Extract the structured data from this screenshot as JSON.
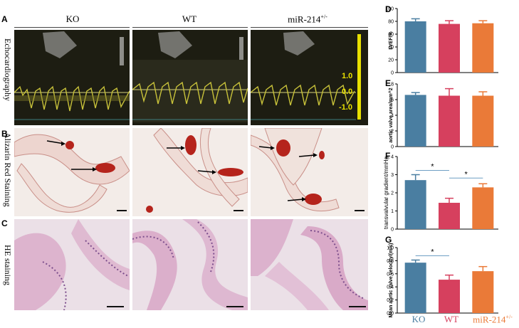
{
  "panel_letters": {
    "A": "A",
    "B": "B",
    "C": "C",
    "D": "D",
    "E": "E",
    "F": "F",
    "G": "G"
  },
  "columns": [
    "KO",
    "WT",
    "miR-214"
  ],
  "column_superscript": "+/-",
  "rows": {
    "echo": "Echocardiography",
    "red": "Alizarin Red Staining",
    "he": "HE staining"
  },
  "echo_scale_labels": [
    "1.0",
    "0.0",
    "-1.0"
  ],
  "colors": {
    "KO": "#4a7ea1",
    "WT": "#d6405e",
    "miR": "#ea7a38",
    "echo_wave": "#c8c23a",
    "stain": "#b5241c"
  },
  "x_labels": [
    "KO",
    "WT",
    "miR-214"
  ],
  "x_superscript": "+/-",
  "chart_data": [
    {
      "panel": "D",
      "type": "bar",
      "categories": [
        "KO",
        "WT",
        "miR-214+/-"
      ],
      "values": [
        80,
        76,
        77
      ],
      "errors": [
        4,
        5,
        4
      ],
      "ylabel": "LVEF/%",
      "ylim": [
        0,
        100
      ],
      "yticks": [
        "0",
        "20",
        "40",
        "60",
        "80",
        "100"
      ]
    },
    {
      "panel": "E",
      "type": "bar",
      "categories": [
        "KO",
        "WT",
        "miR-214+/-"
      ],
      "values": [
        6.6,
        6.5,
        6.5
      ],
      "errors": [
        0.3,
        0.9,
        0.5
      ],
      "ylabel": "aortic valve area/mm^2",
      "ylim": [
        0,
        8
      ],
      "yticks": [
        "0",
        "2",
        "4",
        "6",
        "8"
      ]
    },
    {
      "panel": "F",
      "type": "bar",
      "categories": [
        "KO",
        "WT",
        "miR-214+/-"
      ],
      "values": [
        2.7,
        1.45,
        2.3
      ],
      "errors": [
        0.3,
        0.25,
        0.2
      ],
      "ylabel": "transvalvular gradient/mmHg",
      "ylim": [
        0,
        4
      ],
      "yticks": [
        "0",
        "1",
        "2",
        "3",
        "4"
      ],
      "significance": [
        {
          "from": 0,
          "to": 1,
          "label": "*"
        },
        {
          "from": 1,
          "to": 2,
          "label": "*"
        }
      ]
    },
    {
      "panel": "G",
      "type": "bar",
      "categories": [
        "KO",
        "WT",
        "miR-214+/-"
      ],
      "values": [
        0.77,
        0.51,
        0.64
      ],
      "errors": [
        0.04,
        0.07,
        0.07
      ],
      "ylabel": "Mean aortic valve velocity/(m/s)",
      "ylim": [
        0,
        1.0
      ],
      "yticks": [
        "0.0",
        "0.2",
        "0.4",
        "0.6",
        "0.8",
        "1.0"
      ],
      "significance": [
        {
          "from": 0,
          "to": 1,
          "label": "*"
        }
      ]
    }
  ]
}
